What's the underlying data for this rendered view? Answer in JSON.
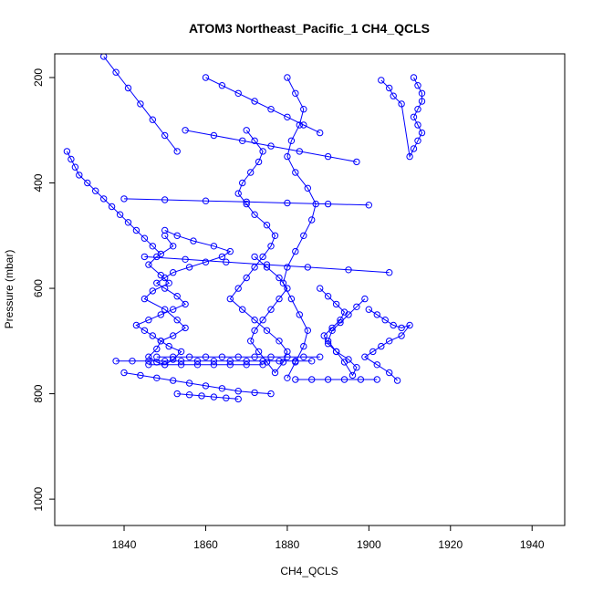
{
  "chart_data": {
    "type": "scatter",
    "title": "ATOM3 Northeast_Pacific_1 CH4_QCLS",
    "xlabel": "CH4_QCLS",
    "ylabel": "Pressure (mbar)",
    "xlim": [
      1823,
      1948
    ],
    "ylim": [
      1050,
      155
    ],
    "y_reversed": true,
    "x_ticks": [
      1840,
      1860,
      1880,
      1900,
      1920,
      1940
    ],
    "y_ticks": [
      200,
      400,
      600,
      800,
      1000
    ],
    "grid": false,
    "legend": "none",
    "color": "#0000ff",
    "marker": "open-circle",
    "connected": true,
    "series": [
      {
        "x": [
          1850,
          1852,
          1848,
          1846,
          1849,
          1851,
          1847,
          1845,
          1850,
          1853,
          1855,
          1852,
          1849,
          1848,
          1846,
          1848,
          1850,
          1852,
          1854,
          1851,
          1849,
          1847,
          1845,
          1843,
          1846,
          1849,
          1852,
          1855,
          1853,
          1850,
          1848,
          1850,
          1852,
          1856,
          1860,
          1864,
          1866,
          1862,
          1857,
          1853,
          1850
        ],
        "y": [
          500,
          520,
          540,
          555,
          575,
          590,
          605,
          620,
          640,
          660,
          675,
          690,
          700,
          715,
          730,
          740,
          745,
          735,
          720,
          710,
          700,
          690,
          680,
          670,
          660,
          650,
          640,
          630,
          615,
          600,
          590,
          580,
          570,
          560,
          550,
          540,
          530,
          520,
          510,
          500,
          490
        ]
      },
      {
        "x": [
          1870,
          1872,
          1874,
          1873,
          1871,
          1869,
          1868,
          1870,
          1872,
          1875,
          1877,
          1876,
          1874,
          1872,
          1870,
          1868,
          1866,
          1869,
          1872,
          1875,
          1878,
          1880,
          1879,
          1877,
          1875,
          1873,
          1871,
          1872,
          1874,
          1876,
          1878,
          1880,
          1878,
          1875,
          1872
        ],
        "y": [
          300,
          320,
          340,
          360,
          380,
          400,
          420,
          440,
          460,
          480,
          500,
          520,
          540,
          560,
          580,
          600,
          620,
          640,
          660,
          680,
          700,
          720,
          740,
          760,
          740,
          720,
          700,
          680,
          660,
          640,
          620,
          600,
          580,
          560,
          540
        ]
      },
      {
        "x": [
          1880,
          1882,
          1884,
          1883,
          1881,
          1880,
          1882,
          1885,
          1887,
          1886,
          1884,
          1882,
          1880,
          1879,
          1881,
          1883,
          1885,
          1884,
          1882,
          1880
        ],
        "y": [
          200,
          230,
          260,
          290,
          320,
          350,
          380,
          410,
          440,
          470,
          500,
          530,
          560,
          590,
          620,
          650,
          680,
          710,
          740,
          770
        ]
      },
      {
        "x": [
          1888,
          1890,
          1892,
          1894,
          1893,
          1891,
          1889,
          1890,
          1892,
          1895,
          1897,
          1896,
          1894,
          1892,
          1890,
          1891,
          1893,
          1895,
          1897,
          1899
        ],
        "y": [
          600,
          615,
          630,
          645,
          660,
          675,
          690,
          705,
          720,
          735,
          750,
          765,
          740,
          720,
          700,
          680,
          665,
          650,
          635,
          620
        ]
      },
      {
        "x": [
          1900,
          1902,
          1904,
          1906,
          1908,
          1910,
          1908,
          1905,
          1903,
          1901,
          1899,
          1902,
          1905,
          1907
        ],
        "y": [
          640,
          650,
          660,
          670,
          675,
          670,
          690,
          700,
          710,
          720,
          730,
          745,
          760,
          775
        ]
      },
      {
        "x": [
          1911,
          1912,
          1913,
          1913,
          1912,
          1911,
          1912,
          1913,
          1912,
          1911,
          1910,
          1908,
          1906,
          1905,
          1903
        ],
        "y": [
          200,
          215,
          230,
          245,
          260,
          275,
          290,
          305,
          320,
          335,
          350,
          250,
          235,
          220,
          205
        ]
      },
      {
        "x": [
          1826,
          1827,
          1828,
          1829,
          1831,
          1833,
          1835,
          1837,
          1839,
          1841,
          1843,
          1845,
          1847,
          1849
        ],
        "y": [
          340,
          355,
          370,
          385,
          400,
          415,
          430,
          445,
          460,
          475,
          490,
          505,
          520,
          535
        ]
      },
      {
        "x": [
          1838,
          1842,
          1846,
          1850,
          1854,
          1858,
          1862,
          1866,
          1870,
          1874,
          1878,
          1882,
          1886
        ],
        "y": [
          738,
          738,
          738,
          738,
          738,
          738,
          738,
          738,
          738,
          738,
          738,
          738,
          738
        ]
      },
      {
        "x": [
          1848,
          1852,
          1856,
          1860,
          1864,
          1868,
          1872,
          1876,
          1880,
          1884,
          1888
        ],
        "y": [
          730,
          730,
          730,
          730,
          730,
          730,
          730,
          730,
          730,
          730,
          730
        ]
      },
      {
        "x": [
          1846,
          1850,
          1854,
          1858,
          1862,
          1866,
          1870,
          1874
        ],
        "y": [
          745,
          745,
          745,
          745,
          745,
          745,
          745,
          745
        ]
      },
      {
        "x": [
          1882,
          1886,
          1890,
          1894,
          1898,
          1902
        ],
        "y": [
          773,
          773,
          773,
          773,
          773,
          773
        ]
      },
      {
        "x": [
          1853,
          1856,
          1859,
          1862,
          1865,
          1868
        ],
        "y": [
          800,
          802,
          804,
          806,
          808,
          810
        ]
      },
      {
        "x": [
          1840,
          1844,
          1848,
          1852,
          1856,
          1860,
          1864,
          1868,
          1872,
          1876
        ],
        "y": [
          760,
          765,
          770,
          775,
          780,
          785,
          790,
          795,
          798,
          800
        ]
      },
      {
        "x": [
          1835,
          1838,
          1841,
          1844,
          1847,
          1850,
          1853
        ],
        "y": [
          160,
          190,
          220,
          250,
          280,
          310,
          340
        ]
      },
      {
        "x": [
          1860,
          1864,
          1868,
          1872,
          1876,
          1880,
          1884,
          1888
        ],
        "y": [
          200,
          215,
          230,
          245,
          260,
          275,
          290,
          305
        ]
      },
      {
        "x": [
          1840,
          1850,
          1860,
          1870,
          1880,
          1890,
          1900
        ],
        "y": [
          430,
          432,
          434,
          436,
          438,
          440,
          442
        ]
      },
      {
        "x": [
          1855,
          1862,
          1869,
          1876,
          1883,
          1890,
          1897
        ],
        "y": [
          300,
          310,
          320,
          330,
          340,
          350,
          360
        ]
      },
      {
        "x": [
          1845,
          1855,
          1865,
          1875,
          1885,
          1895,
          1905
        ],
        "y": [
          540,
          545,
          550,
          555,
          560,
          565,
          570
        ]
      }
    ]
  }
}
